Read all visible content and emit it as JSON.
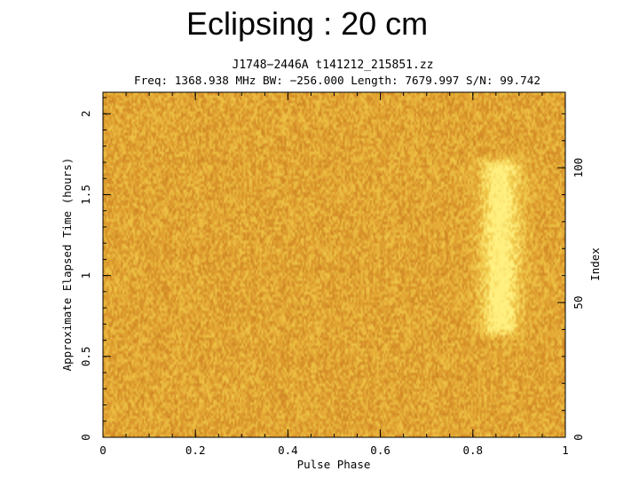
{
  "slide": {
    "title": "Eclipsing : 20 cm"
  },
  "chart_data": {
    "type": "heatmap",
    "title": "J1748−2446A t141212_215851.zz",
    "subtitle": "Freq: 1368.938 MHz BW: −256.000 Length: 7679.997 S/N: 99.742",
    "xlabel": "Pulse Phase",
    "ylabel": "Approximate Elapsed Time (hours)",
    "y2label": "Index",
    "xlim": [
      0,
      1
    ],
    "ylim": [
      0,
      2.133
    ],
    "y2lim": [
      0,
      128
    ],
    "x_ticks": [
      "0",
      "0.2",
      "0.4",
      "0.6",
      "0.8",
      "1"
    ],
    "x_tick_values": [
      0,
      0.2,
      0.4,
      0.6,
      0.8,
      1
    ],
    "y_ticks": [
      "0",
      "0.5",
      "1",
      "1.5",
      "2"
    ],
    "y_tick_values": [
      0,
      0.5,
      1,
      1.5,
      2
    ],
    "y2_ticks": [
      "0",
      "50",
      "100"
    ],
    "y2_tick_values": [
      0,
      50,
      100
    ],
    "colormap": [
      "#c87a1e",
      "#e0a030",
      "#f0c848",
      "#fff080"
    ],
    "pulse": {
      "phase_center": 0.86,
      "phase_width": 0.05,
      "visible_from_hours": 0.6,
      "visible_to_hours": 1.75,
      "eclipsed_outside": true
    }
  }
}
